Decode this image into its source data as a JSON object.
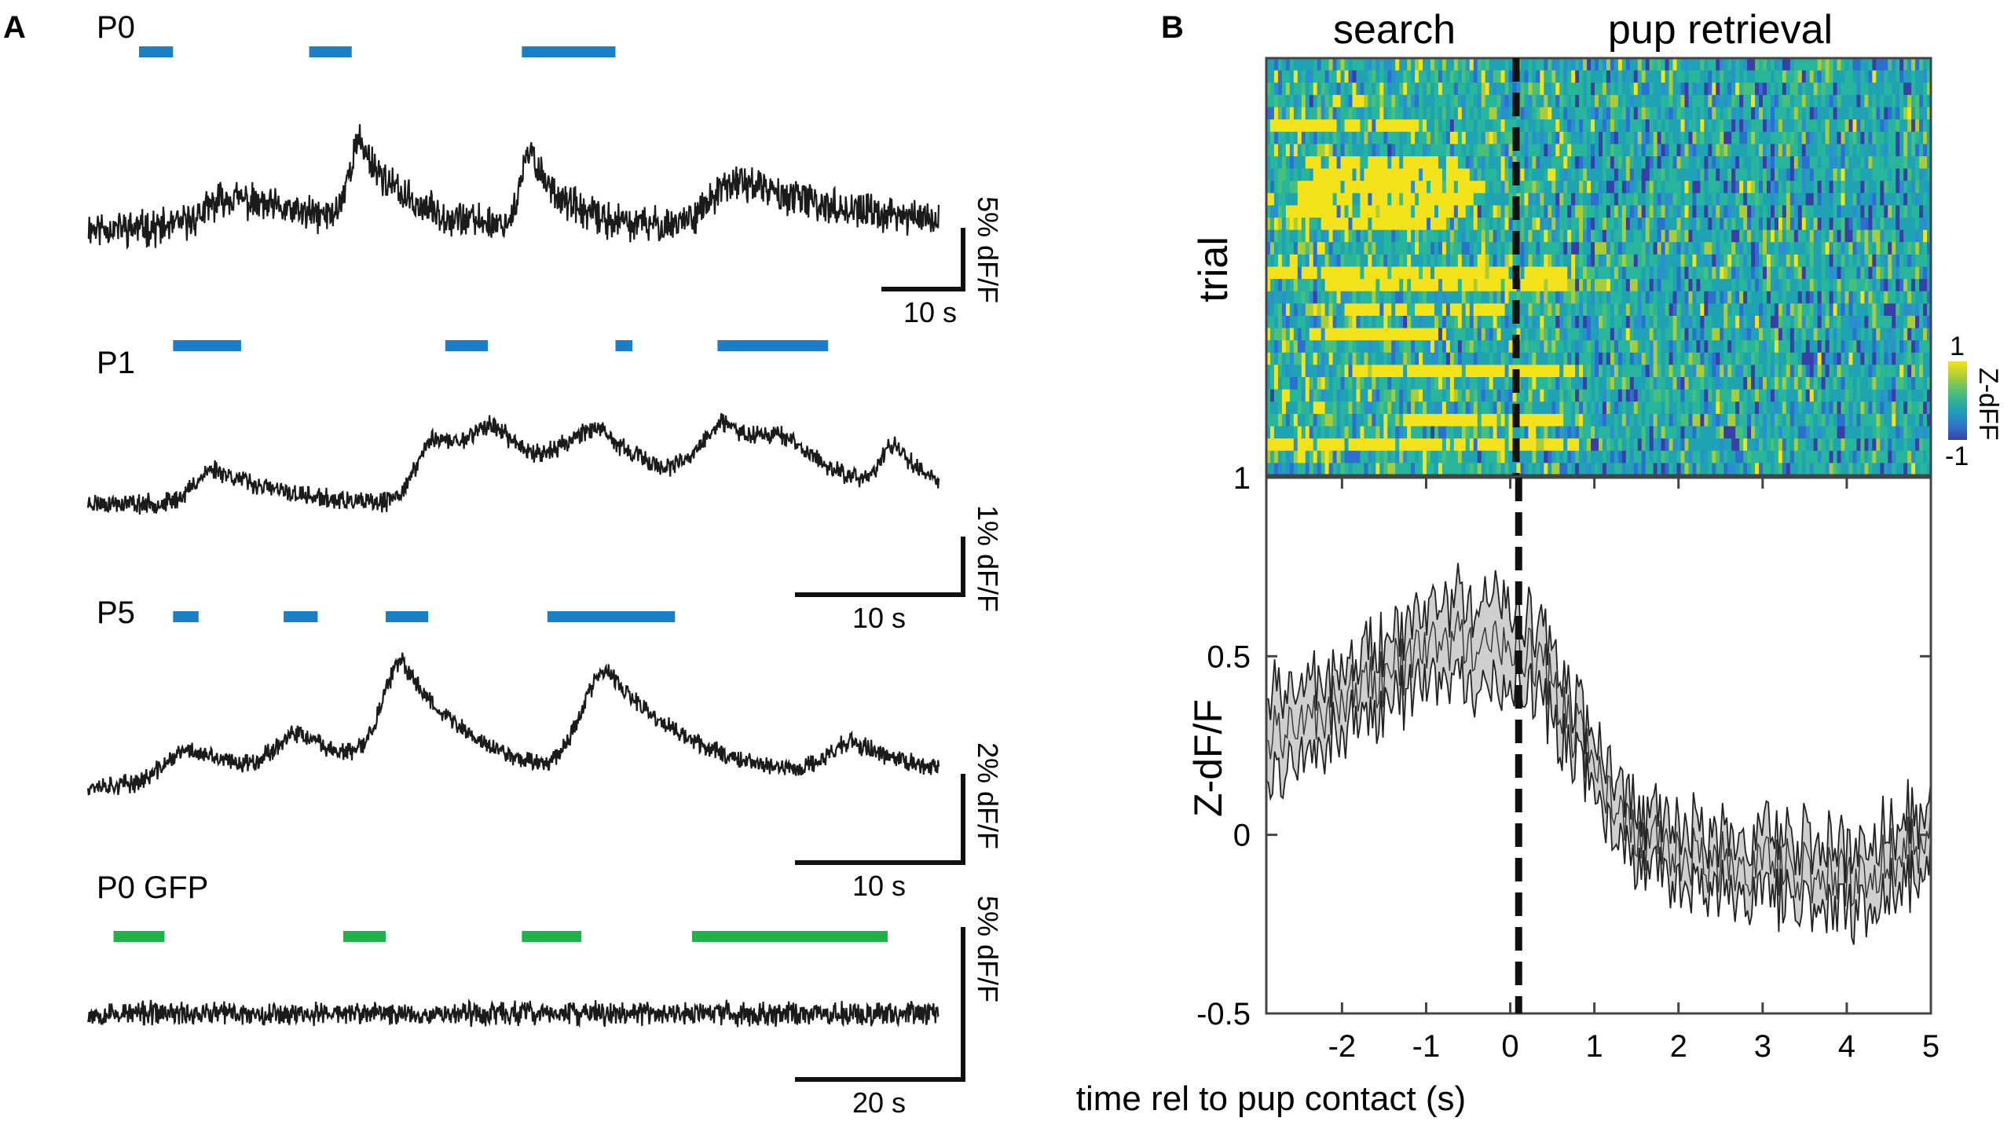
{
  "panel_a": {
    "letter": "A",
    "traces": [
      {
        "label": "P0",
        "bar_color": "#1a7fc7",
        "bars": [
          [
            0.06,
            0.1
          ],
          [
            0.26,
            0.31
          ],
          [
            0.51,
            0.62
          ]
        ],
        "peaks": [
          [
            0.17,
            0.12,
            0.05
          ],
          [
            0.32,
            0.3,
            0.022
          ],
          [
            0.52,
            0.28,
            0.018
          ],
          [
            0.77,
            0.18,
            0.06
          ]
        ],
        "noise": 0.055,
        "drift": 0.0,
        "seed": 11,
        "scale_y": "5% dF/F",
        "scale_x": "10 s"
      },
      {
        "label": "P1",
        "bar_color": "#1a7fc7",
        "bars": [
          [
            0.1,
            0.18
          ],
          [
            0.42,
            0.47
          ],
          [
            0.62,
            0.64
          ],
          [
            0.74,
            0.87
          ]
        ],
        "peaks": [
          [
            0.15,
            0.14,
            0.04
          ],
          [
            0.41,
            0.26,
            0.04
          ],
          [
            0.48,
            0.2,
            0.05
          ],
          [
            0.6,
            0.22,
            0.06
          ],
          [
            0.75,
            0.25,
            0.05
          ],
          [
            0.82,
            0.12,
            0.05
          ],
          [
            0.95,
            0.18,
            0.03
          ]
        ],
        "noise": 0.03,
        "drift": -0.06,
        "seed": 23,
        "scale_y": "1% dF/F",
        "scale_x": "10 s"
      },
      {
        "label": "P5",
        "bar_color": "#1a7fc7",
        "bars": [
          [
            0.1,
            0.13
          ],
          [
            0.23,
            0.27
          ],
          [
            0.35,
            0.4
          ],
          [
            0.54,
            0.69
          ]
        ],
        "peaks": [
          [
            0.12,
            0.14,
            0.05
          ],
          [
            0.25,
            0.16,
            0.05
          ],
          [
            0.37,
            0.42,
            0.04
          ],
          [
            0.61,
            0.42,
            0.05
          ],
          [
            0.9,
            0.14,
            0.05
          ]
        ],
        "noise": 0.03,
        "drift": 0.0,
        "seed": 37,
        "scale_y": "2% dF/F",
        "scale_x": "10 s"
      },
      {
        "label": "P0 GFP",
        "bar_color": "#22b24c",
        "bars": [
          [
            0.03,
            0.09
          ],
          [
            0.3,
            0.35
          ],
          [
            0.51,
            0.58
          ],
          [
            0.71,
            0.94
          ]
        ],
        "peaks": [],
        "noise": 0.06,
        "drift": 0.0,
        "seed": 53,
        "scale_y": "5% dF/F",
        "scale_x": "20 s"
      }
    ]
  },
  "panel_b": {
    "letter": "B",
    "heatmap_headers": {
      "left": "search",
      "right": "pup retrieval"
    },
    "heatmap_ylabel": "trial",
    "colorbar": {
      "max_label": "1",
      "min_label": "-1",
      "title": "Z-dFF",
      "stops": [
        "#3a3fa8",
        "#2b7bc9",
        "#1fa3b3",
        "#48bf7a",
        "#a9cc3a",
        "#f4e21a"
      ]
    },
    "heatmap": {
      "rows": 34,
      "cols": 170,
      "yellow_rows": [
        [
          5,
          [
            0,
            40
          ]
        ],
        [
          8,
          [
            10,
            48
          ]
        ],
        [
          9,
          [
            10,
            50
          ]
        ],
        [
          10,
          [
            8,
            55
          ]
        ],
        [
          11,
          [
            8,
            52
          ]
        ],
        [
          12,
          [
            5,
            50
          ]
        ],
        [
          13,
          [
            6,
            45
          ]
        ],
        [
          17,
          [
            0,
            78
          ]
        ],
        [
          18,
          [
            15,
            75
          ]
        ],
        [
          20,
          [
            20,
            60
          ]
        ],
        [
          22,
          [
            10,
            45
          ]
        ],
        [
          25,
          [
            20,
            80
          ]
        ],
        [
          29,
          [
            35,
            80
          ]
        ],
        [
          31,
          [
            0,
            80
          ]
        ]
      ]
    }
  },
  "chart_data": [
    {
      "type": "line",
      "title": "",
      "xlabel": "time rel to pup contact (s)",
      "ylabel": "Z-dF/F",
      "xlim": [
        -2.9,
        5.0
      ],
      "ylim": [
        -0.5,
        1.0
      ],
      "xticks": [
        "-2",
        "-1",
        "0",
        "1",
        "2",
        "3",
        "4",
        "5"
      ],
      "yticks": [
        "-0.5",
        "0",
        "0.5",
        "1"
      ],
      "vline_x": 0.1,
      "band_color": "#cfcfcf",
      "series": [
        {
          "x": [
            -2.9,
            -2.5,
            -2.0,
            -1.5,
            -1.0,
            -0.5,
            0.0,
            0.25,
            0.5,
            0.75,
            1.0,
            1.25,
            1.5,
            2.0,
            2.5,
            3.0,
            3.5,
            4.0,
            4.5,
            5.0
          ],
          "mean": [
            0.3,
            0.3,
            0.38,
            0.44,
            0.52,
            0.55,
            0.52,
            0.5,
            0.42,
            0.3,
            0.2,
            0.1,
            0.0,
            -0.06,
            -0.08,
            -0.08,
            -0.1,
            -0.12,
            -0.07,
            0.0
          ],
          "sem": [
            0.12,
            0.1,
            0.09,
            0.09,
            0.1,
            0.12,
            0.12,
            0.1,
            0.09,
            0.08,
            0.08,
            0.08,
            0.08,
            0.08,
            0.08,
            0.08,
            0.09,
            0.09,
            0.09,
            0.09
          ]
        }
      ]
    }
  ]
}
